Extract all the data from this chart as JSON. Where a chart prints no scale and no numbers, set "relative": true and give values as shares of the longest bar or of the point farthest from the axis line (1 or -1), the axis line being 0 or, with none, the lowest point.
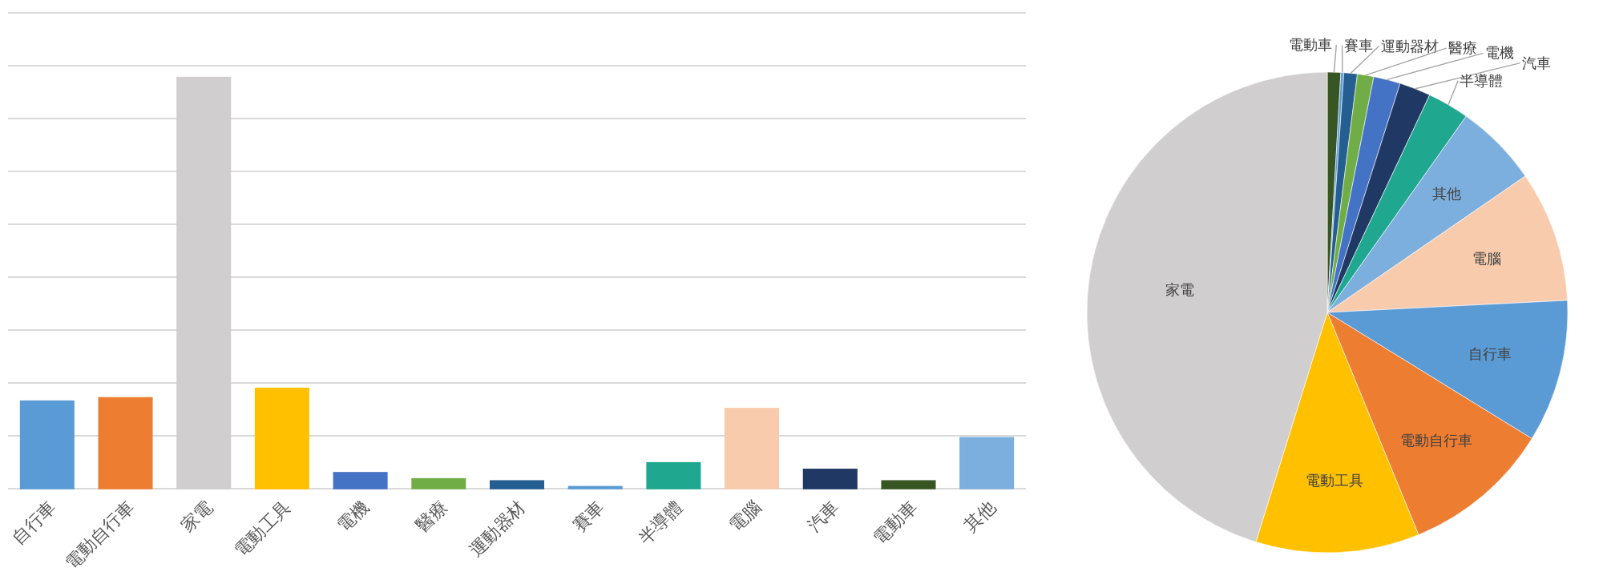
{
  "chart_data": [
    {
      "type": "bar",
      "relative": true,
      "grid": true,
      "categories": [
        "自行車",
        "電動自行車",
        "家電",
        "電動工具",
        "電機",
        "醫療",
        "運動器材",
        "賽車",
        "半導體",
        "電腦",
        "汽車",
        "電動車",
        "其他"
      ],
      "values": [
        0.213,
        0.221,
        1,
        0.244,
        0.039,
        0.024,
        0.019,
        0.005,
        0.063,
        0.195,
        0.047,
        0.019,
        0.124
      ],
      "colors": [
        "#5b9bd5",
        "#ed7d31",
        "#d0cece",
        "#ffc000",
        "#4472c4",
        "#70ad47",
        "#255e91",
        "#5b9bd5",
        "#1fa88f",
        "#f8cbad",
        "#203864",
        "#375623",
        "#7cafdd"
      ]
    },
    {
      "type": "pie",
      "categories": [
        "電動車",
        "賽車",
        "運動器材",
        "醫療",
        "電機",
        "汽車",
        "半導體",
        "其他",
        "電腦",
        "自行車",
        "電動自行車",
        "電動工具",
        "家電"
      ],
      "values": [
        0.9,
        0.2,
        0.9,
        1.1,
        1.8,
        2.1,
        2.8,
        5.6,
        8.8,
        9.6,
        10.0,
        11.0,
        45.2
      ],
      "colors": [
        "#375623",
        "#5b9bd5",
        "#255e91",
        "#70ad47",
        "#4472c4",
        "#203864",
        "#1fa88f",
        "#7cafdd",
        "#f8cbad",
        "#5b9bd5",
        "#ed7d31",
        "#ffc000",
        "#d0cece"
      ]
    }
  ]
}
